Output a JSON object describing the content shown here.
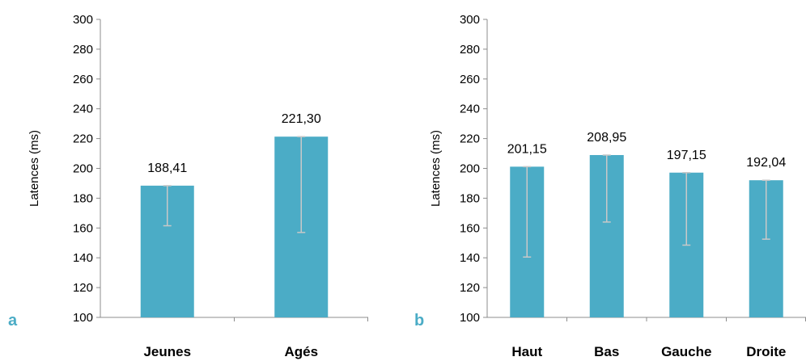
{
  "colors": {
    "bar": "#4bacc6",
    "panel_label": "#4bacc6",
    "error_bar": "#c8c8c8",
    "axis": "#8c8c8c"
  },
  "chart_data": [
    {
      "type": "bar",
      "panel_label": "a",
      "ylabel": "Latences (ms)",
      "xlabel": "",
      "title": "",
      "ylim": [
        100,
        300
      ],
      "ytick_step": 20,
      "categories": [
        "Jeunes",
        "Agés"
      ],
      "values": [
        188.41,
        221.3
      ],
      "value_labels": [
        "188,41",
        "221,30"
      ],
      "error_lower": [
        161.5,
        157.0
      ],
      "grid": false
    },
    {
      "type": "bar",
      "panel_label": "b",
      "ylabel": "Latences (ms)",
      "xlabel": "",
      "title": "",
      "ylim": [
        100,
        300
      ],
      "ytick_step": 20,
      "categories": [
        "Haut",
        "Bas",
        "Gauche",
        "Droite"
      ],
      "values": [
        201.15,
        208.95,
        197.15,
        192.04
      ],
      "value_labels": [
        "201,15",
        "208,95",
        "197,15",
        "192,04"
      ],
      "error_lower": [
        140.5,
        164.0,
        148.5,
        152.5
      ],
      "grid": false
    }
  ]
}
